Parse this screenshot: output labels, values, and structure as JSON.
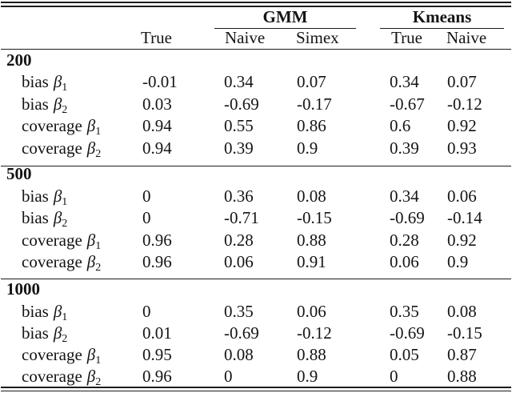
{
  "table": {
    "header": {
      "groups": [
        {
          "label": "GMM"
        },
        {
          "label": "Kmeans"
        }
      ],
      "columns": [
        "True",
        "Naive",
        "Simex",
        "True",
        "Naive"
      ]
    },
    "sections": [
      {
        "label": "200",
        "rows": [
          {
            "metric": "bias",
            "symbol": "β",
            "sub": "1",
            "values": [
              "-0.01",
              "0.34",
              "0.07",
              "0.34",
              "0.07"
            ]
          },
          {
            "metric": "bias",
            "symbol": "β",
            "sub": "2",
            "values": [
              "0.03",
              "-0.69",
              "-0.17",
              "-0.67",
              "-0.12"
            ]
          },
          {
            "metric": "coverage",
            "symbol": "β",
            "sub": "1",
            "values": [
              "0.94",
              "0.55",
              "0.86",
              "0.6",
              "0.92"
            ]
          },
          {
            "metric": "coverage",
            "symbol": "β",
            "sub": "2",
            "values": [
              "0.94",
              "0.39",
              "0.9",
              "0.39",
              "0.93"
            ]
          }
        ]
      },
      {
        "label": "500",
        "rows": [
          {
            "metric": "bias",
            "symbol": "β",
            "sub": "1",
            "values": [
              "0",
              "0.36",
              "0.08",
              "0.34",
              "0.06"
            ]
          },
          {
            "metric": "bias",
            "symbol": "β",
            "sub": "2",
            "values": [
              "0",
              "-0.71",
              "-0.15",
              "-0.69",
              "-0.14"
            ]
          },
          {
            "metric": "coverage",
            "symbol": "β",
            "sub": "1",
            "values": [
              "0.96",
              "0.28",
              "0.88",
              "0.28",
              "0.92"
            ]
          },
          {
            "metric": "coverage",
            "symbol": "β",
            "sub": "2",
            "values": [
              "0.96",
              "0.06",
              "0.91",
              "0.06",
              "0.9"
            ]
          }
        ]
      },
      {
        "label": "1000",
        "rows": [
          {
            "metric": "bias",
            "symbol": "β",
            "sub": "1",
            "values": [
              "0",
              "0.35",
              "0.06",
              "0.35",
              "0.08"
            ]
          },
          {
            "metric": "bias",
            "symbol": "β",
            "sub": "2",
            "values": [
              "0.01",
              "-0.69",
              "-0.12",
              "-0.69",
              "-0.15"
            ]
          },
          {
            "metric": "coverage",
            "symbol": "β",
            "sub": "1",
            "values": [
              "0.95",
              "0.08",
              "0.88",
              "0.05",
              "0.87"
            ]
          },
          {
            "metric": "coverage",
            "symbol": "β",
            "sub": "2",
            "values": [
              "0.96",
              "0",
              "0.9",
              "0",
              "0.88"
            ]
          }
        ]
      }
    ]
  }
}
